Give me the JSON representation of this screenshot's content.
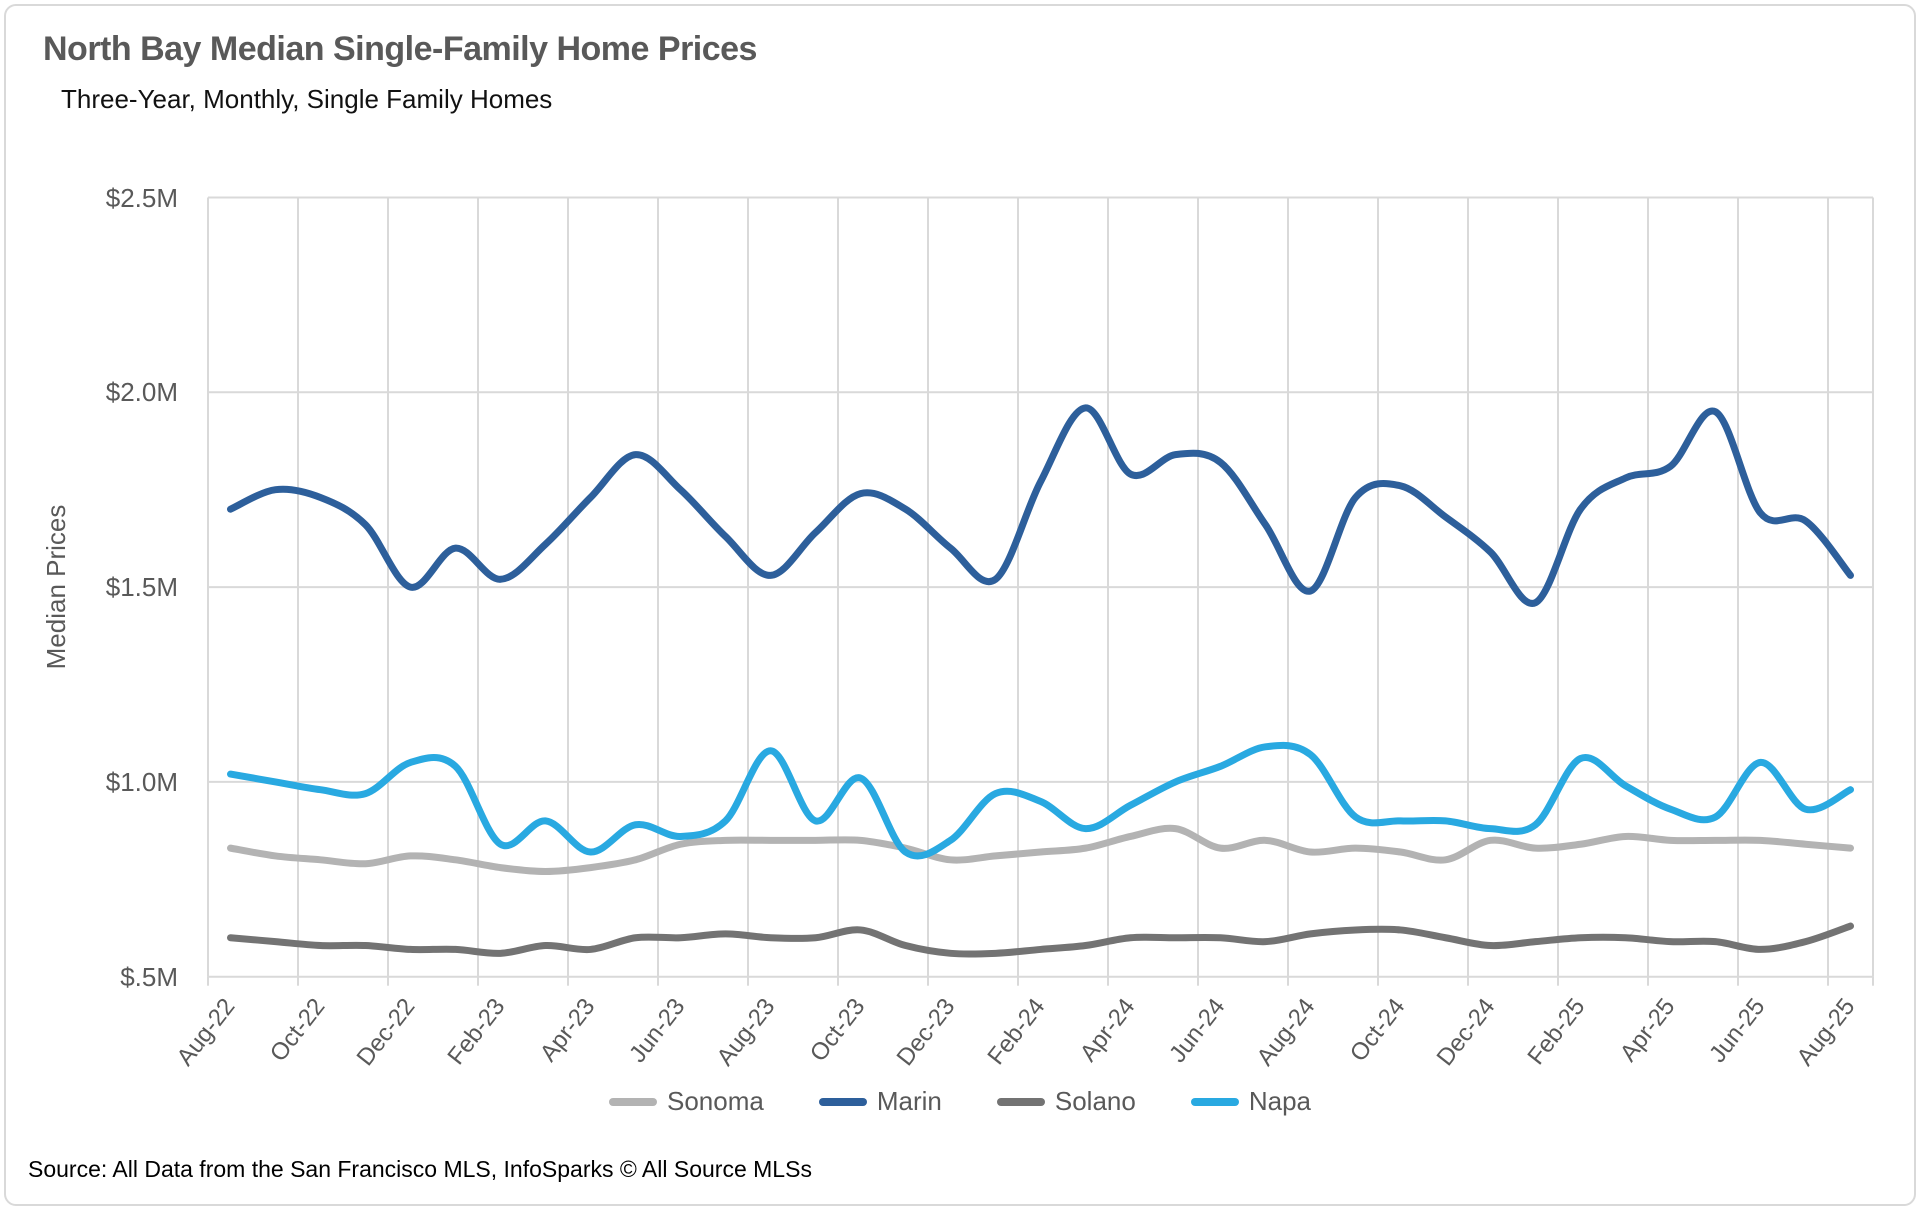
{
  "header": {
    "title": "North Bay Median Single-Family Home Prices",
    "subtitle": "Three-Year, Monthly, Single Family Homes"
  },
  "footer": {
    "source": "Source: All Data from the San Francisco MLS, InfoSparks © All Source MLSs"
  },
  "colors": {
    "grid": "#d9d9d9",
    "axis_text": "#595959",
    "title_text": "#595959",
    "sonoma": "#b3b3b3",
    "marin": "#2d5f9b",
    "solano": "#737373",
    "napa": "#29a9e1"
  },
  "chart_data": {
    "type": "line",
    "title": "North Bay Median Single-Family Home Prices",
    "subtitle": "Three-Year, Monthly, Single Family Homes",
    "xlabel": "",
    "ylabel": "Median Prices",
    "unit": "millions of dollars",
    "ylim": [
      0.5,
      2.5
    ],
    "grid": true,
    "smooth": true,
    "legend_position": "bottom",
    "ytick_values": [
      2.5,
      2.0,
      1.5,
      1.0,
      0.5
    ],
    "ytick_labels": [
      "$2.5M",
      "$2.0M",
      "$1.5M",
      "$1.0M",
      "$.5M"
    ],
    "x": [
      "Aug-22",
      "Sep-22",
      "Oct-22",
      "Nov-22",
      "Dec-22",
      "Jan-23",
      "Feb-23",
      "Mar-23",
      "Apr-23",
      "May-23",
      "Jun-23",
      "Jul-23",
      "Aug-23",
      "Sep-23",
      "Oct-23",
      "Nov-23",
      "Dec-23",
      "Jan-24",
      "Feb-24",
      "Mar-24",
      "Apr-24",
      "May-24",
      "Jun-24",
      "Jul-24",
      "Aug-24",
      "Sep-24",
      "Oct-24",
      "Nov-24",
      "Dec-24",
      "Jan-25",
      "Feb-25",
      "Mar-25",
      "Apr-25",
      "May-25",
      "Jun-25",
      "Jul-25",
      "Aug-25"
    ],
    "xtick_labels": [
      "Aug-22",
      "Oct-22",
      "Dec-22",
      "Feb-23",
      "Apr-23",
      "Jun-23",
      "Aug-23",
      "Oct-23",
      "Dec-23",
      "Feb-24",
      "Apr-24",
      "Jun-24",
      "Aug-24",
      "Oct-24",
      "Dec-24",
      "Feb-25",
      "Apr-25",
      "Jun-25",
      "Aug-25"
    ],
    "series": [
      {
        "name": "Sonoma",
        "color": "#b3b3b3",
        "values": [
          0.83,
          0.81,
          0.8,
          0.79,
          0.81,
          0.8,
          0.78,
          0.77,
          0.78,
          0.8,
          0.84,
          0.85,
          0.85,
          0.85,
          0.85,
          0.83,
          0.8,
          0.81,
          0.82,
          0.83,
          0.86,
          0.88,
          0.83,
          0.85,
          0.82,
          0.83,
          0.82,
          0.8,
          0.85,
          0.83,
          0.84,
          0.86,
          0.85,
          0.85,
          0.85,
          0.84,
          0.83
        ]
      },
      {
        "name": "Marin",
        "color": "#2d5f9b",
        "values": [
          1.7,
          1.75,
          1.73,
          1.66,
          1.5,
          1.6,
          1.52,
          1.61,
          1.73,
          1.84,
          1.75,
          1.63,
          1.53,
          1.64,
          1.74,
          1.7,
          1.6,
          1.52,
          1.77,
          1.96,
          1.79,
          1.84,
          1.82,
          1.66,
          1.49,
          1.73,
          1.76,
          1.68,
          1.59,
          1.46,
          1.7,
          1.78,
          1.81,
          1.95,
          1.69,
          1.67,
          1.53
        ]
      },
      {
        "name": "Solano",
        "color": "#737373",
        "values": [
          0.6,
          0.59,
          0.58,
          0.58,
          0.57,
          0.57,
          0.56,
          0.58,
          0.57,
          0.6,
          0.6,
          0.61,
          0.6,
          0.6,
          0.62,
          0.58,
          0.56,
          0.56,
          0.57,
          0.58,
          0.6,
          0.6,
          0.6,
          0.59,
          0.61,
          0.62,
          0.62,
          0.6,
          0.58,
          0.59,
          0.6,
          0.6,
          0.59,
          0.59,
          0.57,
          0.59,
          0.63
        ]
      },
      {
        "name": "Napa",
        "color": "#29a9e1",
        "values": [
          1.02,
          1.0,
          0.98,
          0.97,
          1.05,
          1.04,
          0.84,
          0.9,
          0.82,
          0.89,
          0.86,
          0.9,
          1.08,
          0.9,
          1.01,
          0.82,
          0.85,
          0.97,
          0.95,
          0.88,
          0.94,
          1.0,
          1.04,
          1.09,
          1.07,
          0.91,
          0.9,
          0.9,
          0.88,
          0.89,
          1.06,
          0.99,
          0.93,
          0.91,
          1.05,
          0.93,
          0.98
        ]
      }
    ]
  }
}
